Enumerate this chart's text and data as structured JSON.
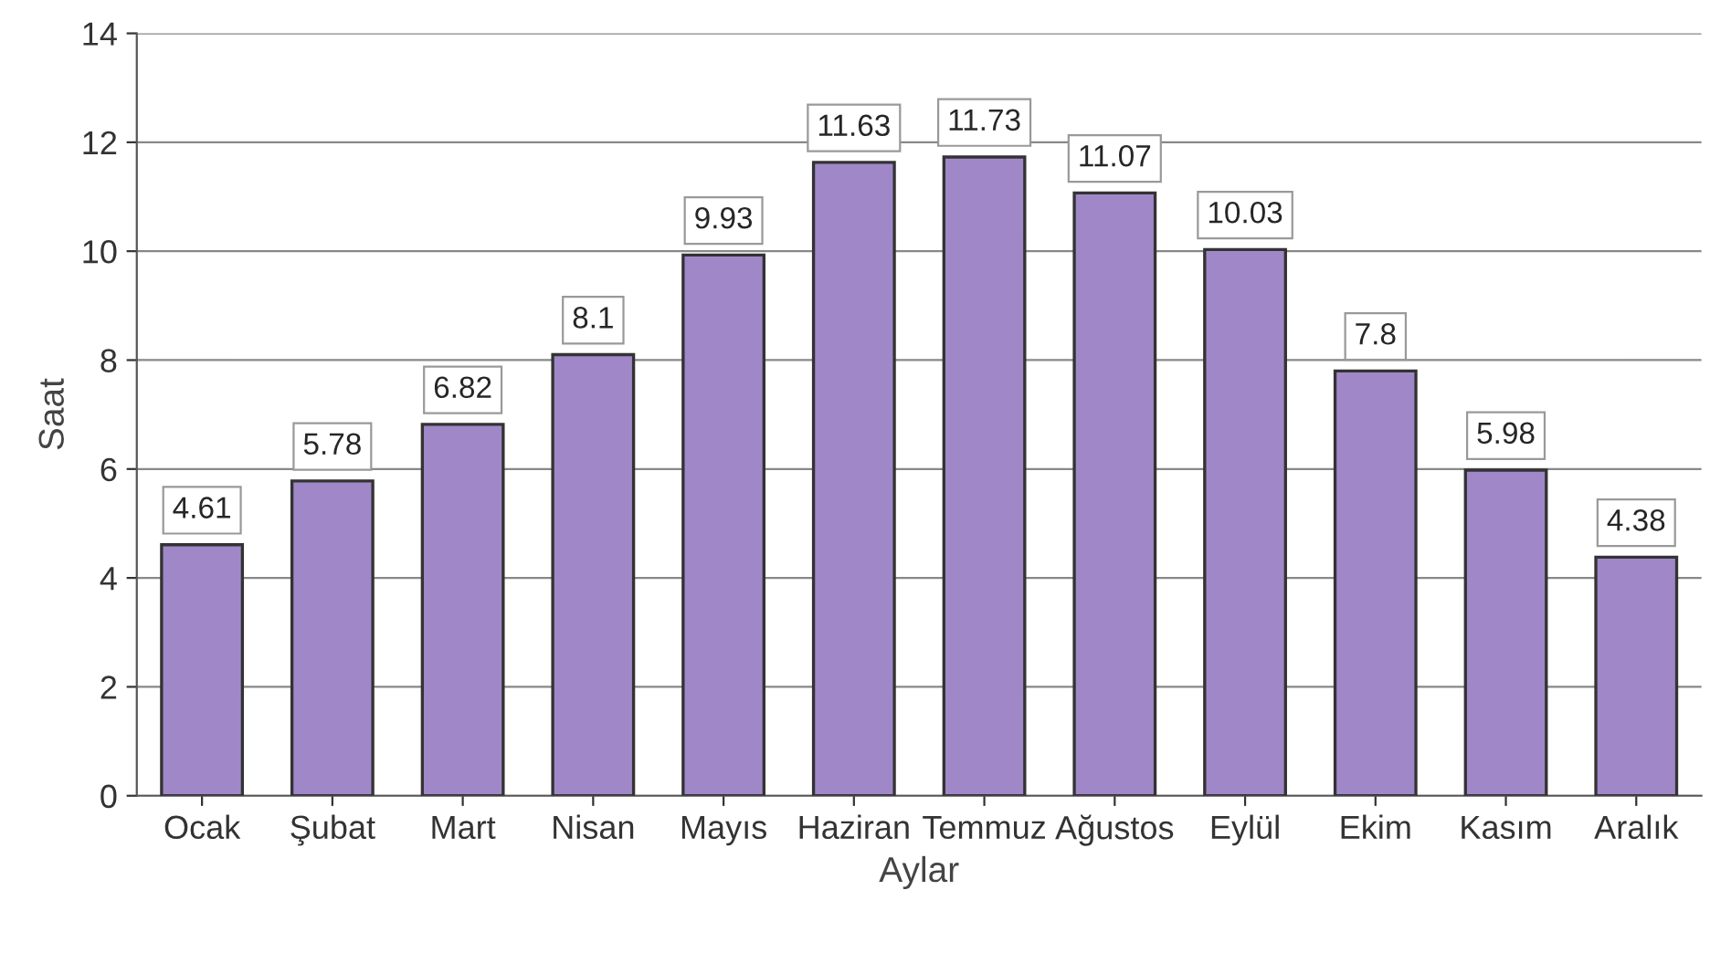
{
  "chart_data": {
    "type": "bar",
    "xlabel": "Aylar",
    "ylabel": "Saat",
    "categories": [
      "Ocak",
      "Şubat",
      "Mart",
      "Nisan",
      "Mayıs",
      "Haziran",
      "Temmuz",
      "Ağustos",
      "Eylül",
      "Ekim",
      "Kasım",
      "Aralık"
    ],
    "values": [
      4.61,
      5.78,
      6.82,
      8.1,
      9.93,
      11.63,
      11.73,
      11.07,
      10.03,
      7.8,
      5.98,
      4.38
    ],
    "color": "#a088c8",
    "ylim": [
      0,
      14
    ],
    "yticks": [
      0,
      2,
      4,
      6,
      8,
      10,
      12,
      14
    ],
    "grid": "y",
    "data_labels": true
  }
}
